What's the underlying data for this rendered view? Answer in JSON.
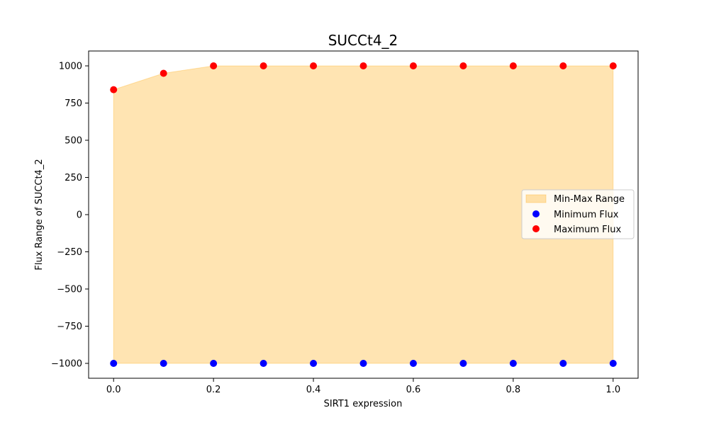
{
  "chart_data": {
    "type": "scatter",
    "title": "SUCCt4_2",
    "xlabel": "SIRT1 expression",
    "ylabel": "Flux Range of SUCCt4_2",
    "xlim": [
      -0.05,
      1.05
    ],
    "ylim": [
      -1100,
      1100
    ],
    "x": [
      0.0,
      0.1,
      0.2,
      0.3,
      0.4,
      0.5,
      0.6,
      0.7,
      0.8,
      0.9,
      1.0
    ],
    "x_ticks": [
      "0.0",
      "0.2",
      "0.4",
      "0.6",
      "0.8",
      "1.0"
    ],
    "y_ticks": [
      "1000",
      "750",
      "500",
      "250",
      "0",
      "−250",
      "−500",
      "−750",
      "−1000"
    ],
    "series": [
      {
        "name": "Minimum Flux",
        "color": "#0000ff",
        "values": [
          -1000,
          -1000,
          -1000,
          -1000,
          -1000,
          -1000,
          -1000,
          -1000,
          -1000,
          -1000,
          -1000
        ]
      },
      {
        "name": "Maximum Flux",
        "color": "#ff0000",
        "values": [
          840,
          950,
          1000,
          1000,
          1000,
          1000,
          1000,
          1000,
          1000,
          1000,
          1000
        ]
      }
    ],
    "fill": {
      "name": "Min-Max Range",
      "color": "#ffa500",
      "opacity": 0.3
    },
    "legend": {
      "position": "center-right",
      "entries": [
        "Min-Max Range",
        "Minimum Flux",
        "Maximum Flux"
      ]
    },
    "grid": false
  }
}
